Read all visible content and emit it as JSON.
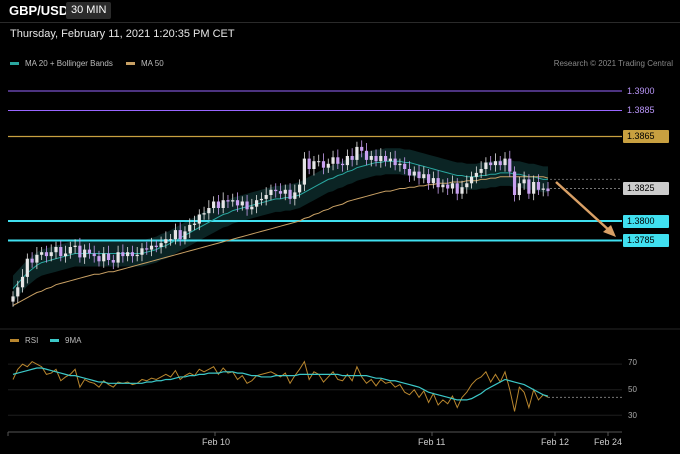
{
  "header": {
    "pair": "GBP/USD",
    "timeframe": "30 MIN",
    "datetime": "Thursday, February 11, 2021 1:20:35 PM CET",
    "credit": "Research © 2021 Trading Central"
  },
  "legend": {
    "ma20": "MA 20 + Bollinger Bands",
    "ma50": "MA 50",
    "rsi": "RSI",
    "ma9": "9MA"
  },
  "colors": {
    "ma20": "#2aa7a0",
    "ma50": "#c8a064",
    "band_fill": "#0c2626",
    "candle_up": "#e6e6e6",
    "candle_down": "#c8a0f0",
    "resistance": "#c8a040",
    "support": "#40e0f0",
    "pivot": "#9966ff",
    "current_price": "#cccccc",
    "arrow": "#d9a066",
    "rsi": "#b8862e",
    "ma9": "#3cc8c8"
  },
  "chart_data": [
    {
      "type": "candlestick",
      "title": "GBP/USD 30 MIN",
      "ylim": [
        1.372,
        1.392
      ],
      "x_ticks": [
        "Feb 10",
        "Feb 11",
        "Feb 12",
        "Feb 24"
      ],
      "levels": [
        {
          "value": 1.39,
          "label": "1.3900",
          "kind": "pivot"
        },
        {
          "value": 1.3885,
          "label": "1.3885",
          "kind": "pivot"
        },
        {
          "value": 1.3865,
          "label": "1.3865",
          "kind": "resistance"
        },
        {
          "value": 1.3825,
          "label": "1.3825",
          "kind": "current"
        },
        {
          "value": 1.38,
          "label": "1.3800",
          "kind": "support"
        },
        {
          "value": 1.3785,
          "label": "1.3785",
          "kind": "support"
        }
      ],
      "closes": [
        1.3742,
        1.3749,
        1.3757,
        1.3771,
        1.3768,
        1.3774,
        1.3776,
        1.3773,
        1.3776,
        1.378,
        1.3773,
        1.3775,
        1.378,
        1.3781,
        1.3772,
        1.3778,
        1.3775,
        1.3773,
        1.3769,
        1.3775,
        1.377,
        1.3768,
        1.3776,
        1.3773,
        1.3776,
        1.3773,
        1.3774,
        1.3779,
        1.3778,
        1.3781,
        1.378,
        1.3783,
        1.3786,
        1.3786,
        1.3793,
        1.3786,
        1.3792,
        1.3797,
        1.3798,
        1.3805,
        1.3806,
        1.381,
        1.3815,
        1.381,
        1.3816,
        1.3815,
        1.3816,
        1.3812,
        1.3815,
        1.3809,
        1.3811,
        1.3816,
        1.3817,
        1.382,
        1.3824,
        1.3823,
        1.3821,
        1.3824,
        1.3817,
        1.3822,
        1.3828,
        1.3848,
        1.384,
        1.3846,
        1.3846,
        1.3841,
        1.3844,
        1.3849,
        1.3844,
        1.3843,
        1.385,
        1.3847,
        1.3857,
        1.3854,
        1.3847,
        1.385,
        1.3846,
        1.385,
        1.3846,
        1.3848,
        1.3843,
        1.3844,
        1.384,
        1.3835,
        1.3838,
        1.3833,
        1.3836,
        1.3829,
        1.3833,
        1.3826,
        1.3828,
        1.3825,
        1.3829,
        1.3821,
        1.3826,
        1.3829,
        1.3834,
        1.3837,
        1.384,
        1.3845,
        1.3843,
        1.3846,
        1.3843,
        1.3848,
        1.3838,
        1.382,
        1.3829,
        1.3832,
        1.3821,
        1.383,
        1.3824,
        1.3825,
        1.3823
      ],
      "ma20": [
        1.3748,
        1.3752,
        1.3756,
        1.376,
        1.3763,
        1.3766,
        1.3768,
        1.3769,
        1.377,
        1.3771,
        1.3772,
        1.3773,
        1.3774,
        1.3775,
        1.3775,
        1.3775,
        1.3775,
        1.3775,
        1.3775,
        1.3775,
        1.3775,
        1.3775,
        1.3775,
        1.3775,
        1.3775,
        1.3775,
        1.3775,
        1.3775,
        1.3776,
        1.3777,
        1.3778,
        1.378,
        1.3781,
        1.3783,
        1.3785,
        1.3787,
        1.3789,
        1.3791,
        1.3793,
        1.3795,
        1.3797,
        1.3799,
        1.3801,
        1.3803,
        1.3805,
        1.3806,
        1.3808,
        1.3809,
        1.381,
        1.3811,
        1.3812,
        1.3813,
        1.3814,
        1.3815,
        1.3816,
        1.3817,
        1.3817,
        1.3818,
        1.3818,
        1.3819,
        1.382,
        1.3822,
        1.3824,
        1.3826,
        1.3828,
        1.383,
        1.3832,
        1.3833,
        1.3835,
        1.3836,
        1.3838,
        1.3839,
        1.3841,
        1.3842,
        1.3843,
        1.3844,
        1.3845,
        1.3845,
        1.3846,
        1.3846,
        1.3846,
        1.3846,
        1.3845,
        1.3845,
        1.3844,
        1.3843,
        1.3842,
        1.3841,
        1.384,
        1.3839,
        1.3838,
        1.3837,
        1.3836,
        1.3835,
        1.3835,
        1.3834,
        1.3834,
        1.3834,
        1.3835,
        1.3835,
        1.3836,
        1.3836,
        1.3837,
        1.3837,
        1.3837,
        1.3836,
        1.3836,
        1.3835,
        1.3834,
        1.3834,
        1.3833,
        1.3832,
        1.3832
      ],
      "ma50": [
        1.3735,
        1.3737,
        1.3739,
        1.3741,
        1.3743,
        1.3745,
        1.3746,
        1.3748,
        1.3749,
        1.3751,
        1.3752,
        1.3753,
        1.3754,
        1.3755,
        1.3756,
        1.3757,
        1.3758,
        1.3759,
        1.3759,
        1.376,
        1.3761,
        1.3761,
        1.3762,
        1.3763,
        1.3764,
        1.3765,
        1.3766,
        1.3767,
        1.3768,
        1.3769,
        1.377,
        1.3771,
        1.3772,
        1.3773,
        1.3774,
        1.3775,
        1.3776,
        1.3777,
        1.3778,
        1.3779,
        1.378,
        1.3781,
        1.3782,
        1.3783,
        1.3784,
        1.3785,
        1.3786,
        1.3787,
        1.3788,
        1.3789,
        1.379,
        1.3791,
        1.3792,
        1.3793,
        1.3794,
        1.3795,
        1.3796,
        1.3797,
        1.3798,
        1.3799,
        1.38,
        1.3802,
        1.3803,
        1.3805,
        1.3806,
        1.3808,
        1.3809,
        1.3811,
        1.3812,
        1.3813,
        1.3815,
        1.3816,
        1.3817,
        1.3818,
        1.3819,
        1.382,
        1.3821,
        1.3822,
        1.3823,
        1.3823,
        1.3824,
        1.3825,
        1.3825,
        1.3826,
        1.3826,
        1.3827,
        1.3827,
        1.3828,
        1.3828,
        1.3829,
        1.3829,
        1.3829,
        1.383,
        1.383,
        1.383,
        1.3831,
        1.3831,
        1.3831,
        1.3832,
        1.3832,
        1.3833,
        1.3833,
        1.3834,
        1.3834,
        1.3834,
        1.3834,
        1.3834,
        1.3834,
        1.3834,
        1.3834,
        1.3834,
        1.3834,
        1.3833
      ]
    },
    {
      "type": "line",
      "title": "RSI",
      "ylim": [
        20,
        85
      ],
      "y_ticks": [
        70,
        50,
        30
      ],
      "series": [
        {
          "name": "RSI",
          "values": [
            58,
            66,
            70,
            68,
            72,
            70,
            68,
            62,
            63,
            66,
            57,
            60,
            62,
            66,
            52,
            58,
            56,
            55,
            52,
            57,
            54,
            52,
            56,
            55,
            56,
            54,
            55,
            58,
            57,
            59,
            58,
            60,
            62,
            60,
            65,
            58,
            61,
            63,
            61,
            66,
            64,
            66,
            68,
            62,
            67,
            63,
            64,
            58,
            61,
            55,
            57,
            61,
            62,
            63,
            64,
            62,
            60,
            63,
            55,
            61,
            66,
            72,
            58,
            64,
            62,
            56,
            60,
            64,
            58,
            57,
            62,
            57,
            68,
            60,
            55,
            58,
            53,
            58,
            55,
            56,
            52,
            54,
            48,
            46,
            50,
            44,
            49,
            40,
            47,
            38,
            42,
            39,
            45,
            36,
            44,
            48,
            54,
            58,
            60,
            64,
            56,
            62,
            56,
            64,
            50,
            33,
            52,
            48,
            36,
            50,
            42,
            46,
            44
          ]
        },
        {
          "name": "9MA",
          "values": [
            62,
            63,
            64,
            65,
            66,
            67,
            67,
            66,
            65,
            64,
            63,
            62,
            61,
            61,
            60,
            59,
            58,
            57,
            56,
            56,
            55,
            55,
            55,
            55,
            55,
            55,
            55,
            55,
            56,
            56,
            57,
            57,
            58,
            58,
            59,
            60,
            60,
            61,
            61,
            62,
            62,
            63,
            63,
            63,
            64,
            64,
            64,
            63,
            63,
            62,
            61,
            61,
            60,
            60,
            60,
            61,
            61,
            61,
            61,
            61,
            62,
            62,
            62,
            62,
            62,
            62,
            62,
            62,
            62,
            61,
            61,
            61,
            61,
            61,
            61,
            60,
            59,
            59,
            58,
            57,
            57,
            56,
            55,
            54,
            53,
            52,
            50,
            48,
            47,
            46,
            45,
            44,
            43,
            42,
            42,
            42,
            43,
            45,
            47,
            50,
            52,
            54,
            56,
            58,
            57,
            56,
            55,
            54,
            52,
            50,
            48,
            46,
            45
          ]
        }
      ]
    }
  ],
  "axis": {
    "x_labels": [
      "Feb 10",
      "Feb 11",
      "Feb 12",
      "Feb 24"
    ],
    "rsi_ticks": [
      "70",
      "50",
      "30"
    ]
  }
}
